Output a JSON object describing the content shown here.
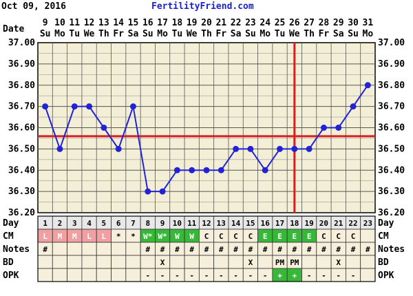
{
  "header": {
    "date_text": "Oct 09, 2016",
    "brand": "FertilityFriend.com",
    "date_label": "Date",
    "day_label": "Day"
  },
  "colors": {
    "grid_bg": "#f3eed6",
    "line": "#2323d6",
    "point": "#2323d6",
    "coverline": "#d62020",
    "ovulation": "#d62020",
    "pink": "#f0a0a0",
    "green": "#38b838",
    "light_green": "#9ed89e",
    "table_bg": "#f6efdc",
    "label_bg": "#e8e8e8"
  },
  "chart_data": {
    "type": "line",
    "title": "",
    "x_dates": [
      "9",
      "10",
      "11",
      "12",
      "13",
      "14",
      "15",
      "16",
      "17",
      "18",
      "19",
      "20",
      "21",
      "22",
      "23",
      "24",
      "25",
      "26",
      "27",
      "28",
      "29",
      "30",
      "31"
    ],
    "x_weekdays": [
      "Su",
      "Mo",
      "Tu",
      "We",
      "Th",
      "Fr",
      "Sa",
      "Su",
      "Mo",
      "Tu",
      "We",
      "Th",
      "Fr",
      "Sa",
      "Su",
      "Mo",
      "Tu",
      "We",
      "Th",
      "Fr",
      "Sa",
      "Su",
      "Mo"
    ],
    "cycle_days": [
      "1",
      "2",
      "3",
      "4",
      "5",
      "6",
      "7",
      "8",
      "9",
      "10",
      "11",
      "12",
      "13",
      "14",
      "15",
      "16",
      "17",
      "18",
      "19",
      "20",
      "21",
      "22",
      "23"
    ],
    "series": [
      {
        "values": [
          36.7,
          36.5,
          36.7,
          36.7,
          36.6,
          36.5,
          36.7,
          36.3,
          36.3,
          36.4,
          36.4,
          36.4,
          36.4,
          36.5,
          36.5,
          36.4,
          36.5,
          36.5,
          36.5,
          36.6,
          36.6,
          36.7,
          36.8
        ]
      }
    ],
    "ylim": [
      36.2,
      37.0
    ],
    "yticks": [
      "37.00",
      "36.90",
      "36.80",
      "36.70",
      "36.60",
      "36.50",
      "36.40",
      "36.30",
      "36.20"
    ],
    "coverline": 36.56,
    "ovulation_day_index": 18,
    "grid": true
  },
  "rows": {
    "cm": {
      "label": "CM",
      "cells": [
        "L",
        "M",
        "M",
        "L",
        "L",
        "*",
        "*",
        "W*",
        "W*",
        "W",
        "W",
        "C",
        "C",
        "C",
        "C",
        "E",
        "E",
        "E",
        "E",
        "C",
        "C",
        "C",
        ""
      ],
      "styles": [
        "pink",
        "pink",
        "pink",
        "pink",
        "pink",
        "",
        "",
        "green",
        "green",
        "green",
        "green",
        "",
        "",
        "",
        "",
        "green",
        "green",
        "green",
        "green",
        "",
        "",
        "",
        ""
      ]
    },
    "notes": {
      "label": "Notes",
      "cells": [
        "#",
        "",
        "",
        "",
        "",
        "",
        "",
        "#",
        "#",
        "#",
        "#",
        "#",
        "#",
        "#",
        "#",
        "#",
        "#",
        "#",
        "#",
        "#",
        "#",
        "#",
        "#"
      ]
    },
    "bd": {
      "label": "BD",
      "cells": [
        "",
        "",
        "",
        "",
        "",
        "",
        "",
        "",
        "X",
        "",
        "",
        "",
        "",
        "",
        "X",
        "",
        "PM",
        "PM",
        "",
        "",
        "X",
        "",
        ""
      ]
    },
    "opk": {
      "label": "OPK",
      "cells": [
        "",
        "",
        "",
        "",
        "",
        "",
        "",
        "-",
        "-",
        "-",
        "-",
        "-",
        "-",
        "-",
        "-",
        "-",
        "+",
        "+",
        "-",
        "-",
        "-",
        "-",
        ""
      ],
      "styles": [
        "",
        "",
        "",
        "",
        "",
        "",
        "",
        "",
        "",
        "",
        "",
        "",
        "",
        "",
        "",
        "",
        "green",
        "green",
        "",
        "",
        "",
        "",
        ""
      ]
    }
  }
}
